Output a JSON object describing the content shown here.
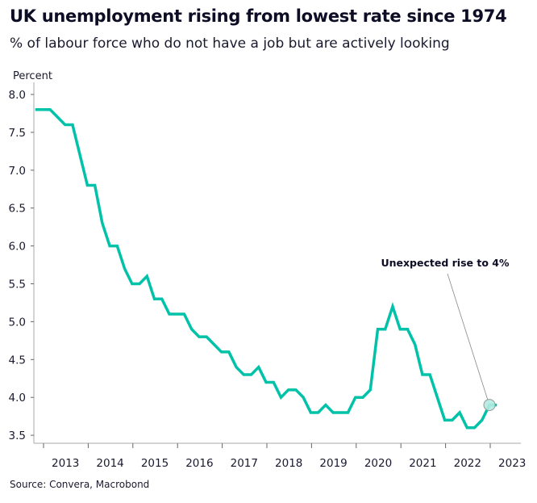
{
  "title": "UK unemployment rising from lowest rate since 1974",
  "subtitle": "% of labour force who do not have a job but are actively looking",
  "source": "Source: Convera, Macrobond",
  "colors": {
    "line": "#00c2a8",
    "marker_fill": "#b3ebe1",
    "marker_stroke": "#999999",
    "axis": "#aaaaaa",
    "text": "#1a1a2e"
  },
  "chart_data": {
    "type": "line",
    "ylabel": "Percent",
    "ylim": [
      3.5,
      8.0
    ],
    "yticks": [
      "3.5",
      "4.0",
      "4.5",
      "5.0",
      "5.5",
      "6.0",
      "6.5",
      "7.0",
      "7.5",
      "8.0"
    ],
    "xticks": [
      "2013",
      "2014",
      "2015",
      "2016",
      "2017",
      "2018",
      "2019",
      "2020",
      "2021",
      "2022",
      "2023"
    ],
    "grid": false,
    "x": [
      "2012-11",
      "2013-01",
      "2013-03",
      "2013-05",
      "2013-07",
      "2013-09",
      "2013-11",
      "2014-01",
      "2014-03",
      "2014-05",
      "2014-07",
      "2014-09",
      "2014-11",
      "2015-01",
      "2015-03",
      "2015-05",
      "2015-07",
      "2015-09",
      "2015-11",
      "2016-01",
      "2016-03",
      "2016-05",
      "2016-07",
      "2016-09",
      "2016-11",
      "2017-01",
      "2017-03",
      "2017-05",
      "2017-07",
      "2017-09",
      "2017-11",
      "2018-01",
      "2018-03",
      "2018-05",
      "2018-07",
      "2018-09",
      "2018-11",
      "2019-01",
      "2019-03",
      "2019-05",
      "2019-07",
      "2019-09",
      "2019-11",
      "2020-01",
      "2020-03",
      "2020-05",
      "2020-07",
      "2020-09",
      "2020-11",
      "2021-01",
      "2021-03",
      "2021-05",
      "2021-07",
      "2021-09",
      "2021-11",
      "2022-01",
      "2022-03",
      "2022-05",
      "2022-07",
      "2022-09",
      "2022-11",
      "2023-01",
      "2023-03"
    ],
    "values": [
      7.8,
      7.8,
      7.8,
      7.7,
      7.6,
      7.6,
      7.2,
      6.8,
      6.8,
      6.3,
      6.0,
      6.0,
      5.7,
      5.5,
      5.5,
      5.6,
      5.3,
      5.3,
      5.1,
      5.1,
      5.1,
      4.9,
      4.8,
      4.8,
      4.7,
      4.6,
      4.6,
      4.4,
      4.3,
      4.3,
      4.4,
      4.2,
      4.2,
      4.0,
      4.1,
      4.1,
      4.0,
      3.8,
      3.8,
      3.9,
      3.8,
      3.8,
      3.8,
      4.0,
      4.0,
      4.1,
      4.9,
      4.9,
      5.2,
      4.9,
      4.9,
      4.7,
      4.3,
      4.3,
      4.0,
      3.7,
      3.7,
      3.8,
      3.6,
      3.6,
      3.7,
      3.9,
      3.9
    ],
    "annotation": {
      "text": "Unexpected rise to 4%",
      "x": "2023-01",
      "y": 3.9
    }
  }
}
